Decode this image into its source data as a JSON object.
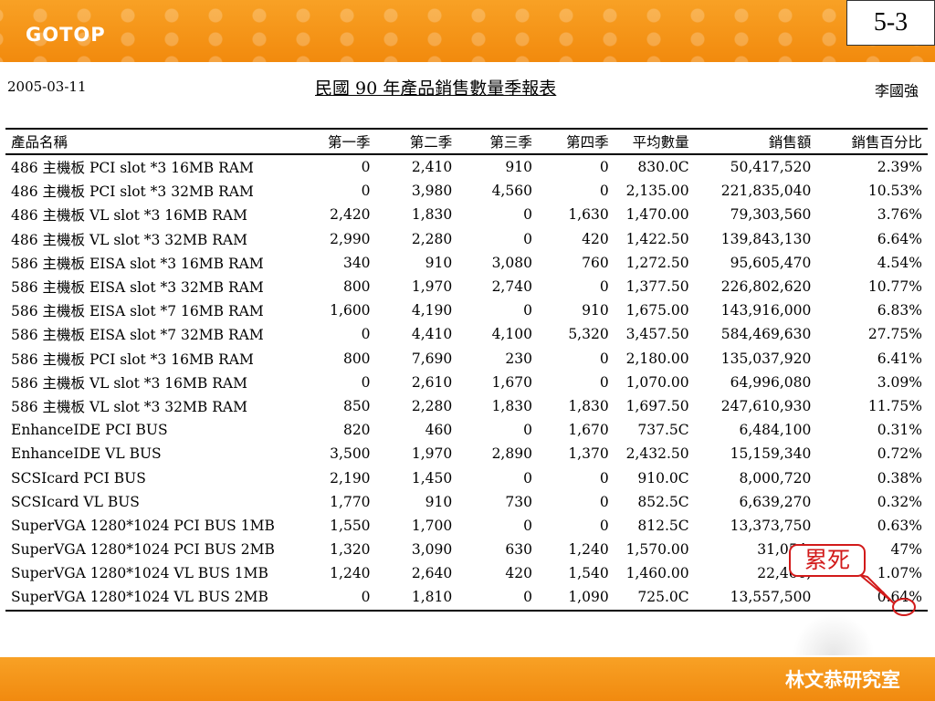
{
  "header": {
    "logo": "GOTOP",
    "slide_number": "5-3"
  },
  "footer": {
    "text": "林文恭研究室"
  },
  "report": {
    "date": "2005-03-11",
    "title": "民國 90 年產品銷售數量季報表",
    "author": "李國強",
    "columns": [
      "產品名稱",
      "第一季",
      "第二季",
      "第三季",
      "第四季",
      "平均數量",
      "銷售額",
      "銷售百分比"
    ],
    "rows": [
      [
        "486 主機板 PCI slot *3 16MB RAM",
        "0",
        "2,410",
        "910",
        "0",
        "830.0C",
        "50,417,520",
        "2.39%"
      ],
      [
        "486 主機板 PCI slot *3 32MB RAM",
        "0",
        "3,980",
        "4,560",
        "0",
        "2,135.00",
        "221,835,040",
        "10.53%"
      ],
      [
        "486 主機板 VL slot *3 16MB RAM",
        "2,420",
        "1,830",
        "0",
        "1,630",
        "1,470.00",
        "79,303,560",
        "3.76%"
      ],
      [
        "486 主機板 VL slot *3 32MB RAM",
        "2,990",
        "2,280",
        "0",
        "420",
        "1,422.50",
        "139,843,130",
        "6.64%"
      ],
      [
        "586 主機板 EISA slot *3 16MB RAM",
        "340",
        "910",
        "3,080",
        "760",
        "1,272.50",
        "95,605,470",
        "4.54%"
      ],
      [
        "586 主機板 EISA slot *3 32MB RAM",
        "800",
        "1,970",
        "2,740",
        "0",
        "1,377.50",
        "226,802,620",
        "10.77%"
      ],
      [
        "586 主機板 EISA slot *7 16MB RAM",
        "1,600",
        "4,190",
        "0",
        "910",
        "1,675.00",
        "143,916,000",
        "6.83%"
      ],
      [
        "586 主機板 EISA slot *7 32MB RAM",
        "0",
        "4,410",
        "4,100",
        "5,320",
        "3,457.50",
        "584,469,630",
        "27.75%"
      ],
      [
        "586 主機板 PCI slot *3 16MB RAM",
        "800",
        "7,690",
        "230",
        "0",
        "2,180.00",
        "135,037,920",
        "6.41%"
      ],
      [
        "586 主機板 VL slot *3 16MB RAM",
        "0",
        "2,610",
        "1,670",
        "0",
        "1,070.00",
        "64,996,080",
        "3.09%"
      ],
      [
        "586 主機板 VL slot *3 32MB RAM",
        "850",
        "2,280",
        "1,830",
        "1,830",
        "1,697.50",
        "247,610,930",
        "11.75%"
      ],
      [
        "EnhanceIDE PCI BUS",
        "820",
        "460",
        "0",
        "1,670",
        "737.5C",
        "6,484,100",
        "0.31%"
      ],
      [
        "EnhanceIDE VL BUS",
        "3,500",
        "1,970",
        "2,890",
        "1,370",
        "2,432.50",
        "15,159,340",
        "0.72%"
      ],
      [
        "SCSIcard PCI BUS",
        "2,190",
        "1,450",
        "0",
        "0",
        "910.0C",
        "8,000,720",
        "0.38%"
      ],
      [
        "SCSIcard VL BUS",
        "1,770",
        "910",
        "730",
        "0",
        "852.5C",
        "6,639,270",
        "0.32%"
      ],
      [
        "SuperVGA 1280*1024 PCI BUS 1MB",
        "1,550",
        "1,700",
        "0",
        "0",
        "812.5C",
        "13,373,750",
        "0.63%"
      ],
      [
        "SuperVGA 1280*1024 PCI BUS 2MB",
        "1,320",
        "3,090",
        "630",
        "1,240",
        "1,570.00",
        "31,054,",
        "47%"
      ],
      [
        "SuperVGA 1280*1024 VL BUS 1MB",
        "1,240",
        "2,640",
        "420",
        "1,540",
        "1,460.00",
        "22,460,",
        "1.07%"
      ],
      [
        "SuperVGA 1280*1024 VL BUS 2MB",
        "0",
        "1,810",
        "0",
        "1,090",
        "725.0C",
        "13,557,500",
        "0.64%"
      ]
    ]
  },
  "annotation": {
    "callout_text": "累死",
    "color": "#d21a1a"
  }
}
